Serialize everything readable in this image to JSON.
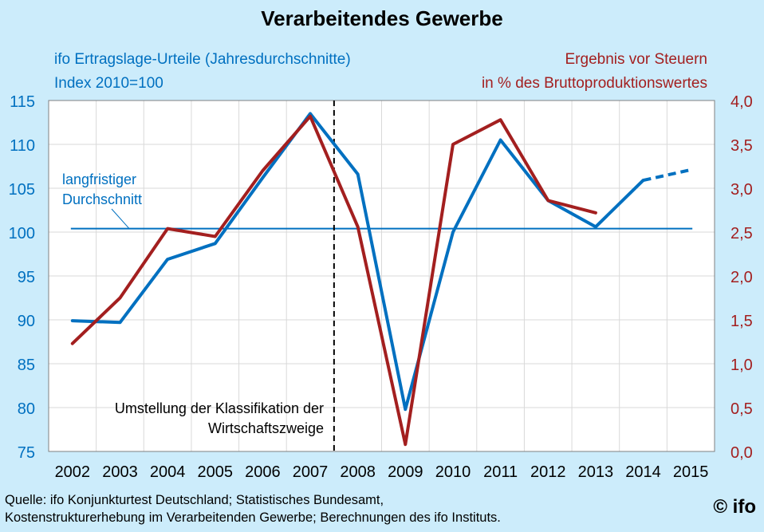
{
  "title": "Verarbeitendes Gewerbe",
  "left_subtitle": [
    "ifo Ertragslage-Urteile  (Jahresdurchschnitte)",
    "Index 2010=100"
  ],
  "right_subtitle": [
    "Ergebnis vor Steuern",
    "in % des Bruttoproduktionswertes"
  ],
  "annotation_longterm": [
    "langfristiger",
    "Durchschnitt"
  ],
  "annotation_break": [
    "Umstellung  der Klassifikation der",
    "Wirtschaftszweige"
  ],
  "source": [
    "Quelle: ifo Konjunkturtest Deutschland; Statistisches Bundesamt,",
    "Kostenstrukturerhebung im Verarbeitenden Gewerbe; Berechnungen des ifo Instituts."
  ],
  "logo": "© ifo",
  "colors": {
    "blue": "#0070c0",
    "red": "#a31f1f",
    "background": "#ccecfb",
    "plot_background": "#ffffff"
  },
  "chart_data": {
    "type": "line",
    "categories": [
      "2002",
      "2003",
      "2004",
      "2005",
      "2006",
      "2007",
      "2008",
      "2009",
      "2010",
      "2011",
      "2012",
      "2013",
      "2014",
      "2015"
    ],
    "y_left": {
      "ticks": [
        "115",
        "110",
        "105",
        "100",
        "95",
        "90",
        "85",
        "80",
        "75"
      ],
      "range": [
        75,
        115
      ]
    },
    "y_right": {
      "ticks": [
        "4,0",
        "3,5",
        "3,0",
        "2,5",
        "2,0",
        "1,5",
        "1,0",
        "0,5",
        "0,0"
      ],
      "range": [
        0,
        4
      ]
    },
    "series": [
      {
        "axis": "left",
        "color": "#0070c0",
        "values": [
          89.9,
          89.7,
          96.9,
          98.7,
          106.2,
          113.5,
          106.6,
          79.8,
          100.0,
          110.5,
          103.6,
          100.6,
          105.9,
          null
        ],
        "dashed_values": [
          null,
          null,
          null,
          null,
          null,
          null,
          null,
          null,
          null,
          null,
          null,
          null,
          105.9,
          107.1
        ]
      },
      {
        "axis": "right",
        "color": "#a31f1f",
        "values": [
          1.23,
          1.75,
          2.54,
          2.45,
          3.2,
          3.82,
          2.56,
          0.08,
          3.5,
          3.78,
          2.86,
          2.72,
          null,
          null
        ]
      }
    ],
    "reference_line": {
      "value": 100.4,
      "axis": "left"
    },
    "break_line": {
      "between": [
        "2007",
        "2008"
      ]
    },
    "grid": true,
    "legend": "none"
  }
}
